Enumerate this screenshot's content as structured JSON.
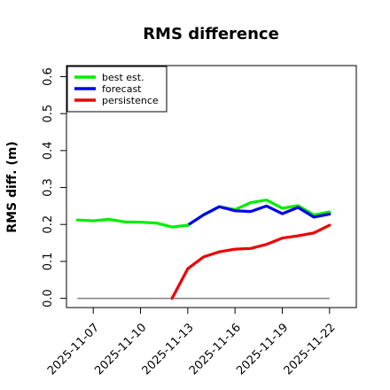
{
  "chart_data": {
    "type": "line",
    "title": "RMS difference",
    "xlabel": "",
    "ylabel": "RMS diff. (m)",
    "x_tick_labels": [
      "2025-11-07",
      "2025-11-10",
      "2025-11-13",
      "2025-11-16",
      "2025-11-19",
      "2025-11-22"
    ],
    "x_tick_values": [
      7,
      10,
      13,
      16,
      19,
      22
    ],
    "highlighted_tick": "2025-11-13",
    "highlight_color": "#228B22",
    "y_tick_labels": [
      "0.0",
      "0.1",
      "0.2",
      "0.3",
      "0.4",
      "0.5",
      "0.6"
    ],
    "y_tick_values": [
      0.0,
      0.1,
      0.2,
      0.3,
      0.4,
      0.5,
      0.6
    ],
    "xlim": [
      5.3,
      23.7
    ],
    "ylim": [
      -0.025,
      0.63
    ],
    "grid": false,
    "legend_position": "top-left",
    "reference_line": {
      "y": 0.0,
      "x_from": 6,
      "x_to": 22,
      "color": "#808080"
    },
    "series": [
      {
        "name": "best est.",
        "color": "#00ee00",
        "x": [
          6,
          7,
          8,
          9,
          10,
          11,
          12,
          13
        ],
        "y": [
          0.212,
          0.21,
          0.214,
          0.207,
          0.206,
          0.204,
          0.193,
          0.198
        ]
      },
      {
        "name": "forecast",
        "color": "#0000ee",
        "x": [
          13,
          14,
          15,
          16,
          17,
          18,
          19,
          20,
          21,
          22
        ],
        "y": [
          0.198,
          0.226,
          0.248,
          0.237,
          0.235,
          0.25,
          0.229,
          0.246,
          0.22,
          0.228
        ]
      },
      {
        "name": "persistence",
        "color": "#ee0000",
        "x": [
          12,
          13,
          14,
          15,
          16,
          17,
          18,
          19,
          20,
          21,
          22
        ],
        "y": [
          0.0,
          0.08,
          0.112,
          0.126,
          0.133,
          0.135,
          0.146,
          0.163,
          0.169,
          0.177,
          0.198
        ]
      },
      {
        "name": "",
        "color": "#00ee00",
        "x": [
          13,
          14,
          15,
          16,
          17,
          18,
          19,
          20,
          21,
          22
        ],
        "y": [
          0.198,
          0.226,
          0.248,
          0.24,
          0.259,
          0.266,
          0.244,
          0.251,
          0.226,
          0.234
        ]
      }
    ]
  }
}
